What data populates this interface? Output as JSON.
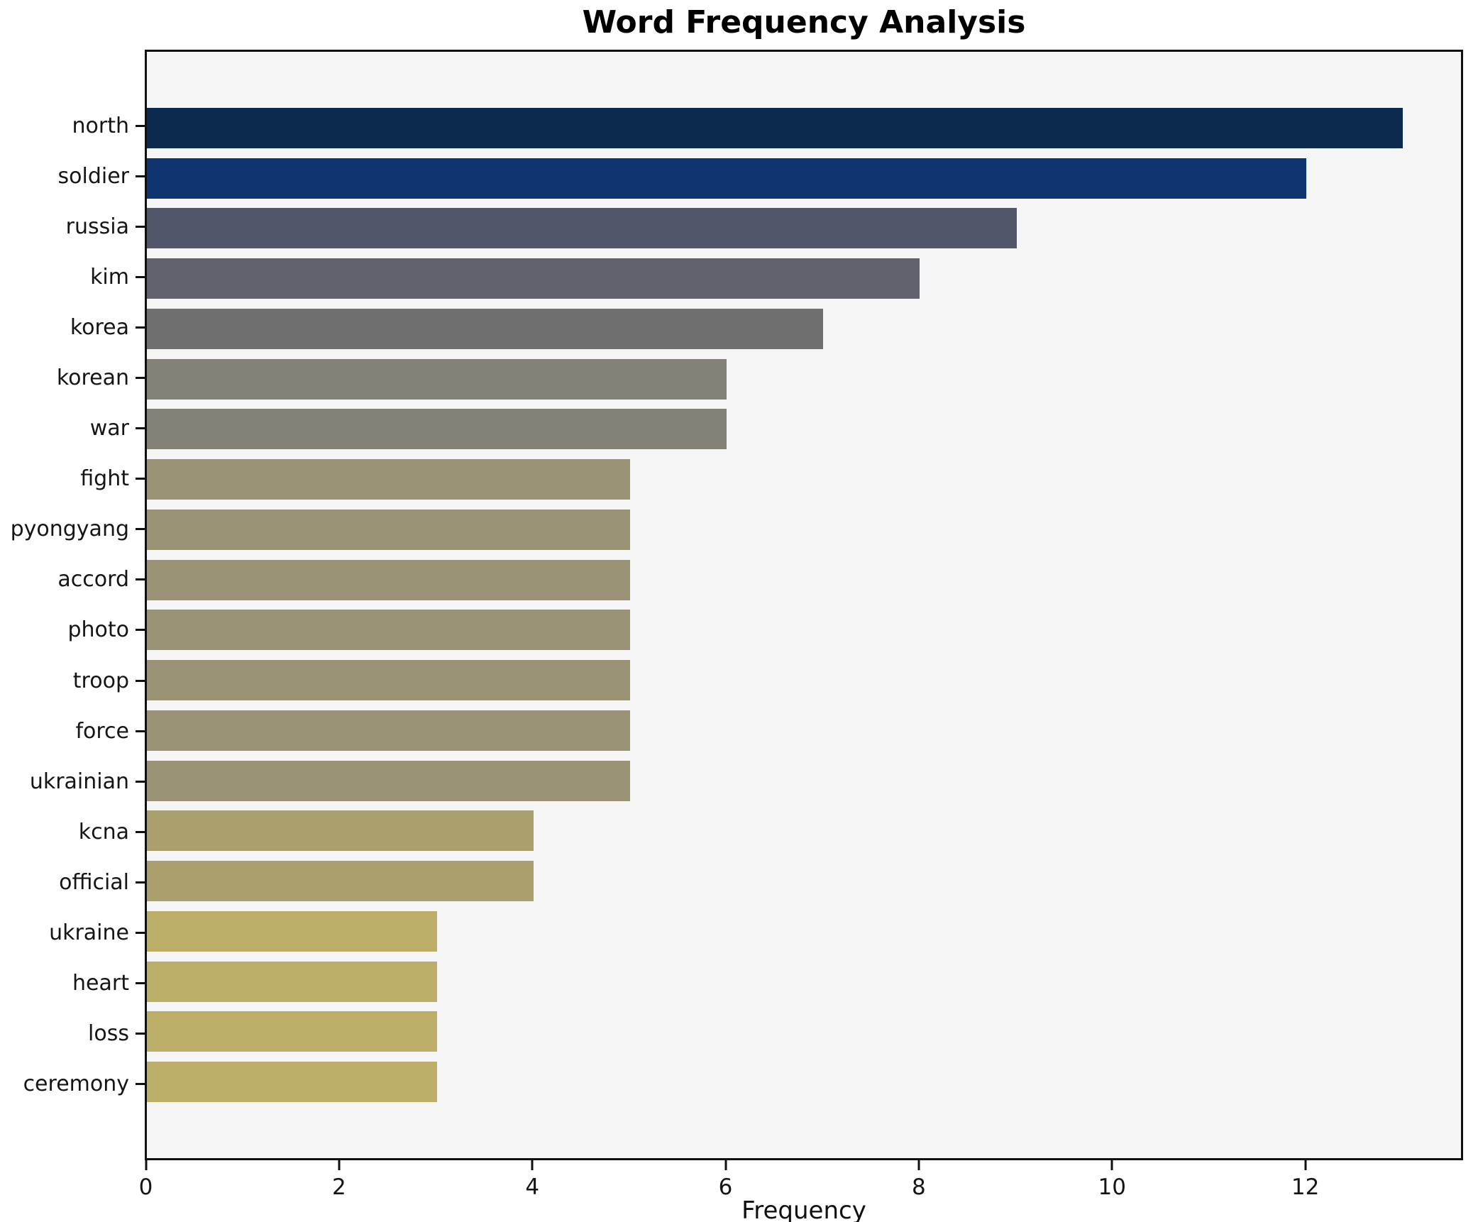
{
  "chart_data": {
    "type": "bar",
    "orientation": "horizontal",
    "title": "Word Frequency Analysis",
    "xlabel": "Frequency",
    "ylabel": "",
    "xlim": [
      0,
      13.6
    ],
    "xticks": [
      0,
      2,
      4,
      6,
      8,
      10,
      12
    ],
    "grid": false,
    "legend_position": "none",
    "plot_bg_color": "#f5f5f5",
    "figure_bg_color": "#ffffff",
    "spine_color": "#101010",
    "categories": [
      "north",
      "soldier",
      "russia",
      "kim",
      "korea",
      "korean",
      "war",
      "fight",
      "pyongyang",
      "accord",
      "photo",
      "troop",
      "force",
      "ukrainian",
      "kcna",
      "official",
      "ukraine",
      "heart",
      "loss",
      "ceremony"
    ],
    "values": [
      13,
      12,
      9,
      8,
      7,
      6,
      6,
      5,
      5,
      5,
      5,
      5,
      5,
      5,
      4,
      4,
      3,
      3,
      3,
      3
    ],
    "bar_colors": [
      "#0c2950",
      "#0e3570",
      "#51566b",
      "#62626d",
      "#6f6f70",
      "#848176",
      "#848176",
      "#999274",
      "#999274",
      "#999274",
      "#999274",
      "#999274",
      "#999274",
      "#999274",
      "#a9a06e",
      "#a9a06e",
      "#bcae68",
      "#bcae68",
      "#bcae68",
      "#bcae68"
    ]
  }
}
